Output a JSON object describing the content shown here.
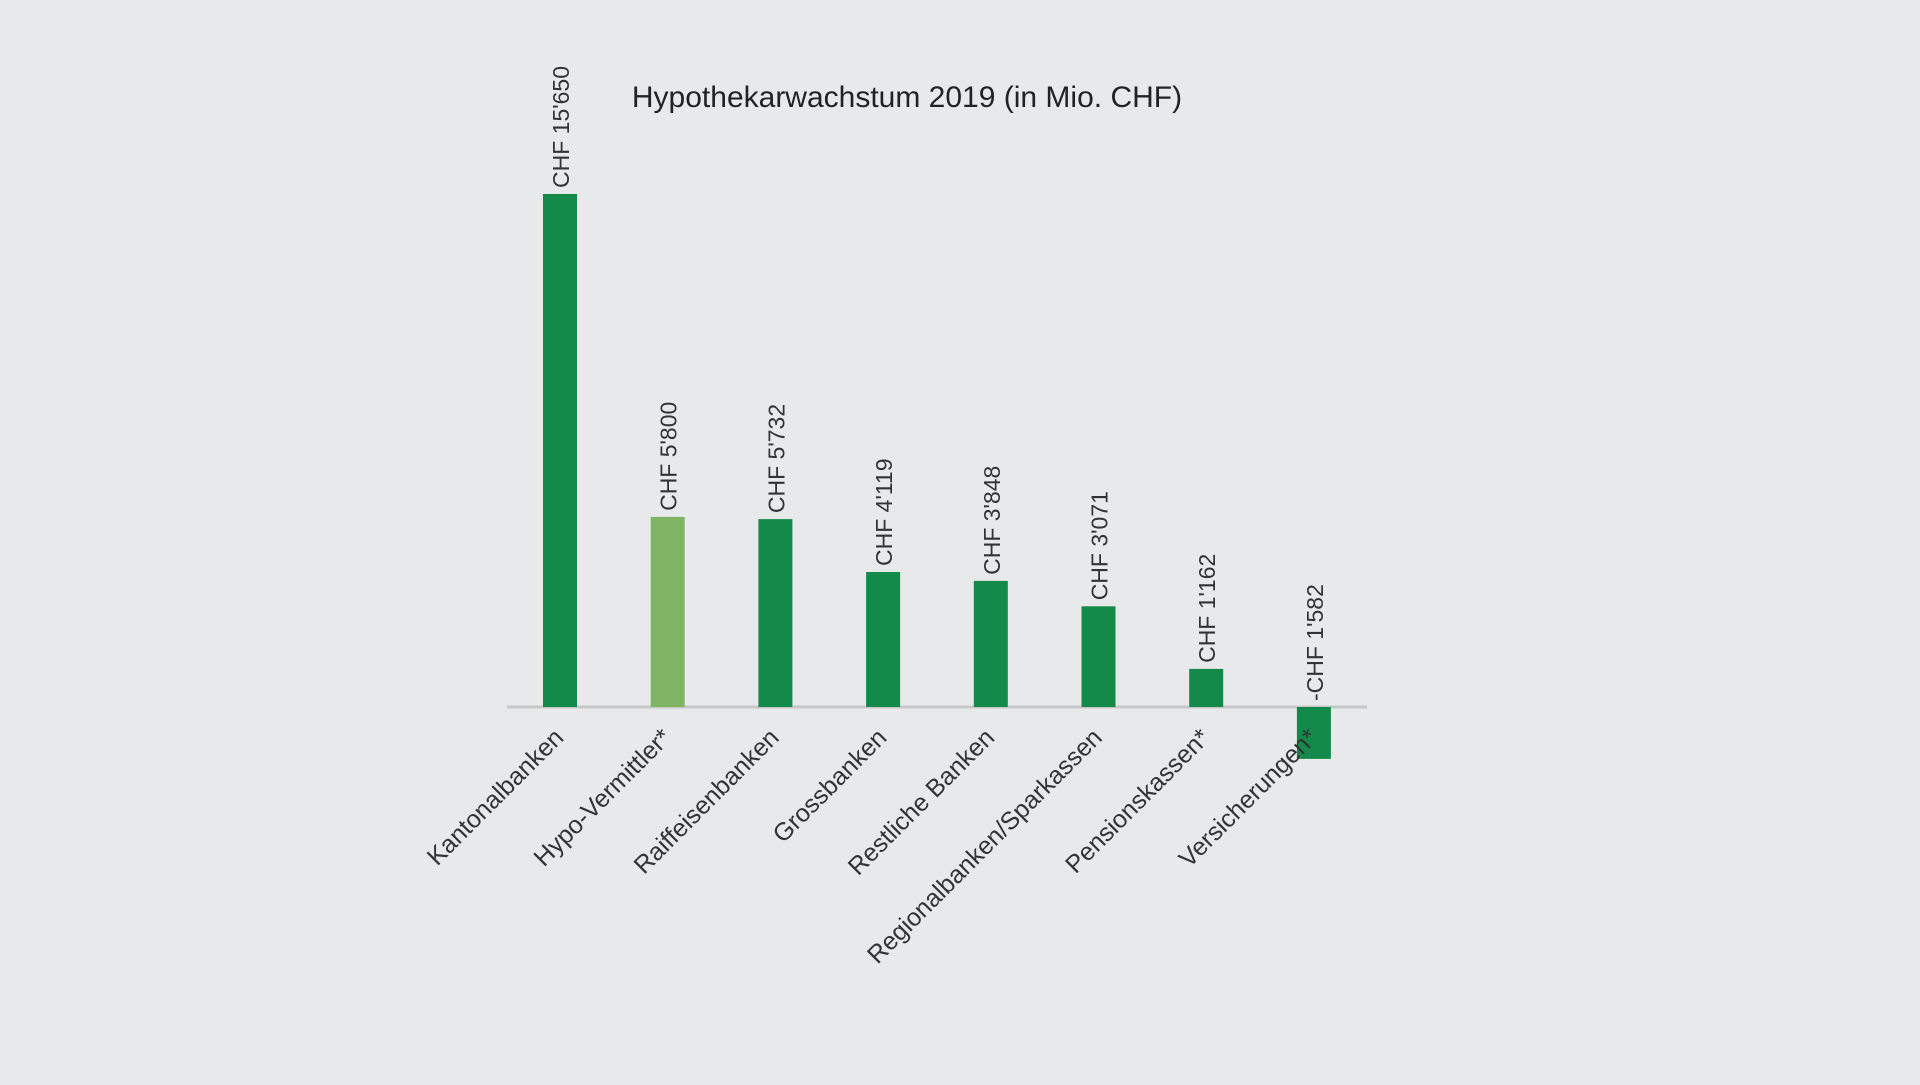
{
  "chart_data": {
    "type": "bar",
    "title": "Hypothekarwachstum 2019 (in Mio. CHF)",
    "xlabel": "",
    "ylabel": "",
    "categories": [
      "Kantonalbanken",
      "Hypo-Vermittler*",
      "Raiffeisenbanken",
      "Grossbanken",
      "Restliche Banken",
      "Regionalbanken/Sparkassen",
      "Pensionskassen*",
      "Versicherungen*"
    ],
    "values": [
      15650,
      5800,
      5732,
      4119,
      3848,
      3071,
      1162,
      -1582
    ],
    "value_labels": [
      "CHF 15'650",
      "CHF 5'800",
      "CHF 5'732",
      "CHF 4'119",
      "CHF 3'848",
      "CHF 3'071",
      "CHF 1'162",
      "-CHF 1'582"
    ],
    "highlight_index": 1,
    "grid": false,
    "legend": "none"
  },
  "colors": {
    "background": "#e8e9eb",
    "bar": "#138a4a",
    "bar_highlight": "#7fb462",
    "axis": "#c8c8c8",
    "text": "#222222",
    "label_text": "#333333"
  }
}
